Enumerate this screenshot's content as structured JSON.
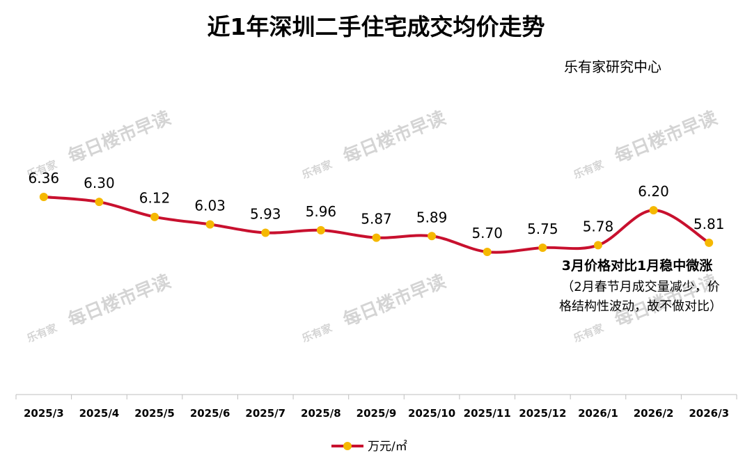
{
  "chart_data": {
    "type": "line",
    "title": "近1年深圳二手住宅成交均价走势",
    "source": "乐有家研究中心",
    "categories": [
      "2025/3",
      "2025/4",
      "2025/5",
      "2025/6",
      "2025/7",
      "2025/8",
      "2025/9",
      "2025/10",
      "2025/11",
      "2025/12",
      "2026/1",
      "2026/2",
      "2026/3"
    ],
    "series": [
      {
        "name": "万元/㎡",
        "values": [
          6.36,
          6.3,
          6.12,
          6.03,
          5.93,
          5.96,
          5.87,
          5.89,
          5.7,
          5.75,
          5.78,
          6.2,
          5.81
        ],
        "labels": [
          "6.36",
          "6.30",
          "6.12",
          "6.03",
          "5.93",
          "5.96",
          "5.87",
          "5.89",
          "5.70",
          "5.75",
          "5.78",
          "6.20",
          "5.81"
        ]
      }
    ],
    "annotation": {
      "main": "3月价格对比1月稳中微涨",
      "sub_line1": "（2月春节月成交量减少，价",
      "sub_line2": "格结构性波动，故不做对比）"
    },
    "legend_position": "bottom",
    "grid": false,
    "line_color": "#c8102e",
    "marker_color": "#f5b800"
  },
  "watermark": {
    "logo": "乐有家",
    "text": "每日楼市早读"
  }
}
